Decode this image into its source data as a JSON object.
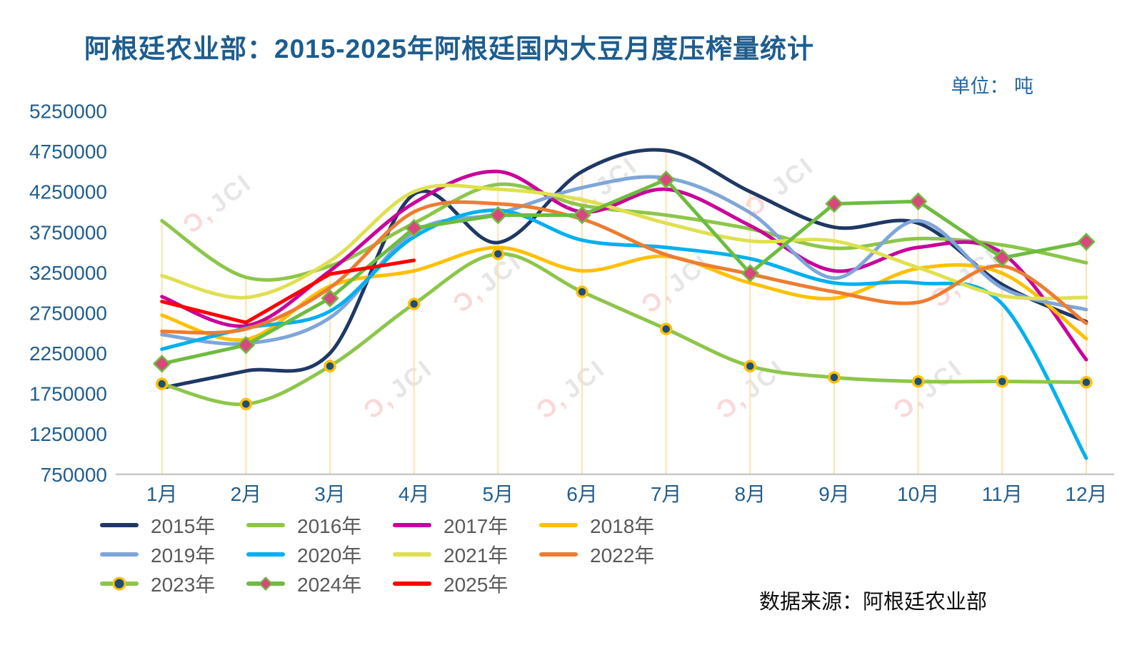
{
  "title": "阿根廷农业部：2015-2025年阿根廷国内大豆月度压榨量统计",
  "unit_label": "单位：  吨",
  "source_label": "数据来源：阿根廷农业部",
  "watermark_text": {
    "mark": "Ɔ,",
    "text": "JCI"
  },
  "chart_data": {
    "type": "line",
    "title": "阿根廷农业部：2015-2025年阿根廷国内大豆月度压榨量统计",
    "ylabel": "吨",
    "categories": [
      "1月",
      "2月",
      "3月",
      "4月",
      "5月",
      "6月",
      "7月",
      "8月",
      "9月",
      "10月",
      "11月",
      "12月"
    ],
    "ylim": [
      750000,
      5250000
    ],
    "y_ticks": [
      5250000,
      4750000,
      4250000,
      3750000,
      3250000,
      2750000,
      2250000,
      1750000,
      1250000,
      750000
    ],
    "grid": "vertical-droplines-only",
    "dropline_color": "#ffe2a8",
    "axis_line_color": "#c9c9c9",
    "axis_label_color": "#215e8e",
    "legend_position": "bottom-left",
    "series": [
      {
        "name": "2015年",
        "color": "#1f3864",
        "smooth": true,
        "marker": "none",
        "values": [
          1820000,
          2030000,
          2250000,
          4220000,
          3620000,
          4500000,
          4760000,
          4250000,
          3810000,
          3860000,
          3100000,
          2640000
        ]
      },
      {
        "name": "2016年",
        "color": "#8dc64a",
        "smooth": true,
        "marker": "none",
        "values": [
          3890000,
          3190000,
          3330000,
          3860000,
          4340000,
          4080000,
          3960000,
          3790000,
          3550000,
          3670000,
          3590000,
          3370000
        ]
      },
      {
        "name": "2017年",
        "color": "#c9009c",
        "smooth": true,
        "marker": "none",
        "values": [
          2950000,
          2590000,
          3270000,
          4110000,
          4500000,
          4000000,
          4280000,
          3830000,
          3270000,
          3560000,
          3490000,
          2170000
        ]
      },
      {
        "name": "2018年",
        "color": "#ffc000",
        "smooth": true,
        "marker": "none",
        "values": [
          2720000,
          2420000,
          3080000,
          3270000,
          3560000,
          3270000,
          3450000,
          3120000,
          2930000,
          3300000,
          3240000,
          2430000
        ]
      },
      {
        "name": "2019年",
        "color": "#7ea6d9",
        "smooth": true,
        "marker": "none",
        "values": [
          2480000,
          2370000,
          2690000,
          3750000,
          3980000,
          4300000,
          4420000,
          3990000,
          3180000,
          3890000,
          3060000,
          2790000
        ]
      },
      {
        "name": "2020年",
        "color": "#00b0f0",
        "smooth": true,
        "marker": "none",
        "values": [
          2300000,
          2560000,
          2770000,
          3690000,
          4020000,
          3650000,
          3560000,
          3420000,
          3120000,
          3120000,
          2860000,
          950000
        ]
      },
      {
        "name": "2021年",
        "color": "#dfe04f",
        "smooth": true,
        "marker": "none",
        "values": [
          3210000,
          2940000,
          3390000,
          4250000,
          4280000,
          4150000,
          3860000,
          3640000,
          3640000,
          3310000,
          2960000,
          2940000
        ]
      },
      {
        "name": "2022年",
        "color": "#ed7d31",
        "smooth": true,
        "marker": "none",
        "values": [
          2520000,
          2550000,
          3060000,
          4000000,
          4100000,
          3910000,
          3470000,
          3230000,
          3010000,
          2880000,
          3330000,
          2620000
        ]
      },
      {
        "name": "2023年",
        "color": "#8dc64a",
        "smooth": true,
        "marker": "circle",
        "marker_fill": "#1f4e79",
        "marker_stroke": "#ffc000",
        "values": [
          1870000,
          1620000,
          2090000,
          2860000,
          3480000,
          3010000,
          2550000,
          2090000,
          1950000,
          1900000,
          1900000,
          1890000
        ]
      },
      {
        "name": "2024年",
        "color": "#6ebc3f",
        "smooth": false,
        "marker": "diamond",
        "marker_fill": "#d9487c",
        "marker_stroke": "#6ebc3f",
        "values": [
          2120000,
          2350000,
          2930000,
          3800000,
          3960000,
          3960000,
          4400000,
          3240000,
          4100000,
          4130000,
          3430000,
          3630000
        ]
      },
      {
        "name": "2025年",
        "color": "#ff0000",
        "smooth": false,
        "marker": "none",
        "values": [
          2890000,
          2630000,
          3230000,
          3400000,
          null,
          null,
          null,
          null,
          null,
          null,
          null,
          null
        ]
      }
    ]
  }
}
